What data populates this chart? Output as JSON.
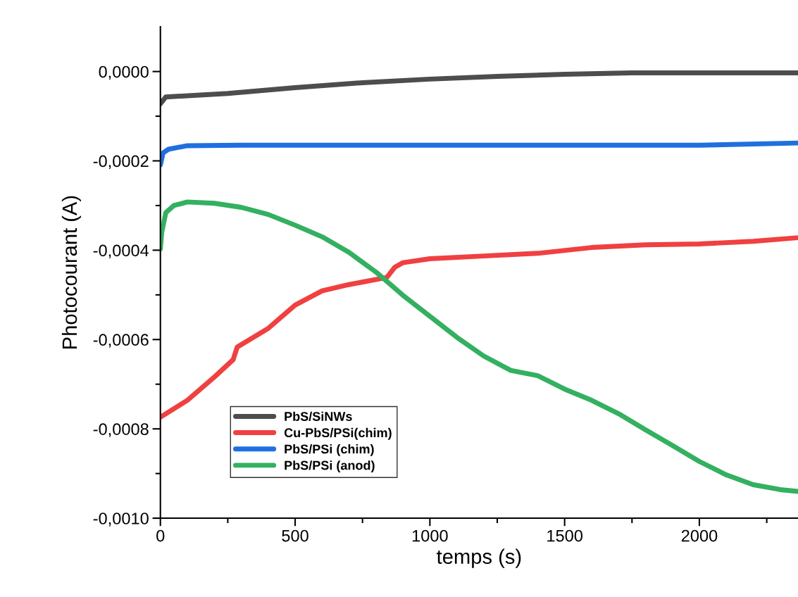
{
  "chart_data": {
    "type": "line",
    "xlabel": "temps (s)",
    "ylabel": "Photocourant (A)",
    "xlim": [
      0,
      2366
    ],
    "ylim": [
      -0.001,
      0.0001
    ],
    "xticks": [
      0,
      {
        "value": 250,
        "label": null
      },
      500,
      {
        "value": 750,
        "label": null
      },
      1000,
      {
        "value": 1250,
        "label": null
      },
      1500,
      {
        "value": 1750,
        "label": null
      },
      2000,
      {
        "value": 2250,
        "label": null
      }
    ],
    "yticks": [
      {
        "value": -0.001,
        "label": "-0,0010"
      },
      {
        "value": -0.0009,
        "label": null
      },
      {
        "value": -0.0008,
        "label": "-0,0008"
      },
      {
        "value": -0.0007,
        "label": null
      },
      {
        "value": -0.0006,
        "label": "-0,0006"
      },
      {
        "value": -0.0005,
        "label": null
      },
      {
        "value": -0.0004,
        "label": "-0,0004"
      },
      {
        "value": -0.0003,
        "label": null
      },
      {
        "value": -0.0002,
        "label": "-0,0002"
      },
      {
        "value": -0.0001,
        "label": null
      },
      {
        "value": 0,
        "label": "0,0000"
      }
    ],
    "legend": "bottom left",
    "grid": false,
    "marker": "none",
    "line_style": "solid",
    "series": [
      {
        "name": "PbS/SiNWs",
        "color": "#4d4d4d",
        "x": [
          0,
          20,
          250,
          500,
          750,
          1000,
          1250,
          1500,
          1750,
          2000,
          2366
        ],
        "values": [
          -7.2e-05,
          -5.7e-05,
          -4.9e-05,
          -3.6e-05,
          -2.5e-05,
          -1.7e-05,
          -1.1e-05,
          -6e-06,
          -3e-06,
          -3e-06,
          -3e-06
        ]
      },
      {
        "name": "Cu-PbS/PSi(chim)",
        "color": "#f04040",
        "x": [
          0,
          100,
          200,
          270,
          285,
          400,
          500,
          600,
          700,
          840,
          870,
          900,
          1000,
          1200,
          1400,
          1600,
          1800,
          2000,
          2200,
          2366
        ],
        "values": [
          -0.000774,
          -0.000736,
          -0.000684,
          -0.000645,
          -0.000617,
          -0.000575,
          -0.000523,
          -0.000491,
          -0.000477,
          -0.000461,
          -0.000438,
          -0.000428,
          -0.000419,
          -0.000413,
          -0.000407,
          -0.000394,
          -0.000388,
          -0.000386,
          -0.00038,
          -0.000372
        ]
      },
      {
        "name": "PbS/PSi (chim)",
        "color": "#1f6fe0",
        "x": [
          0,
          10,
          30,
          100,
          300,
          1000,
          2000,
          2366
        ],
        "values": [
          -0.000209,
          -0.000182,
          -0.000174,
          -0.000166,
          -0.000165,
          -0.000165,
          -0.000165,
          -0.00016
        ]
      },
      {
        "name": "PbS/PSi (anod)",
        "color": "#33b060",
        "x": [
          0,
          5,
          20,
          50,
          100,
          200,
          300,
          400,
          500,
          600,
          700,
          800,
          900,
          1000,
          1100,
          1200,
          1300,
          1400,
          1500,
          1600,
          1700,
          1800,
          1900,
          2000,
          2100,
          2200,
          2300,
          2366
        ],
        "values": [
          -0.000397,
          -0.00036,
          -0.000316,
          -0.0003,
          -0.000292,
          -0.000295,
          -0.000304,
          -0.00032,
          -0.000344,
          -0.00037,
          -0.000405,
          -0.000449,
          -0.000501,
          -0.000548,
          -0.000595,
          -0.000637,
          -0.000669,
          -0.000681,
          -0.000711,
          -0.000736,
          -0.000766,
          -0.000802,
          -0.000837,
          -0.000873,
          -0.000903,
          -0.000925,
          -0.000936,
          -0.00094
        ]
      }
    ]
  }
}
